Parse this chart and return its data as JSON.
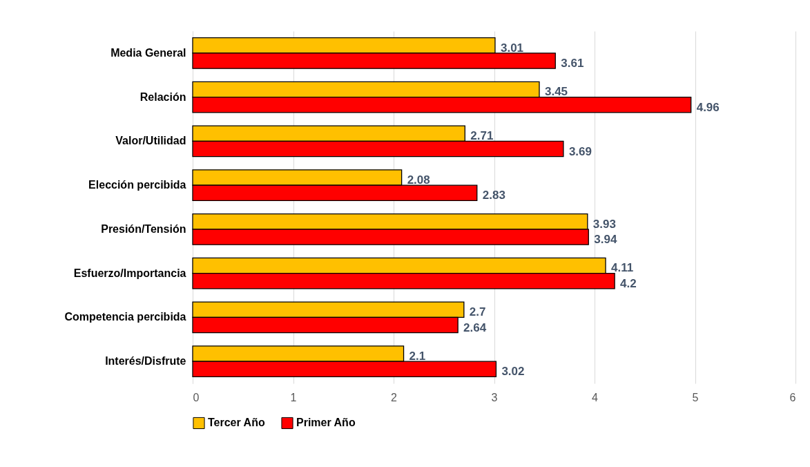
{
  "chart_data": {
    "type": "bar",
    "orientation": "horizontal",
    "categories": [
      "Media General",
      "Relación",
      "Valor/Utilidad",
      "Elección percibida",
      "Presión/Tensión",
      "Esfuerzo/Importancia",
      "Competencia percibida",
      "Interés/Disfrute"
    ],
    "series": [
      {
        "name": "Tercer Año",
        "color": "#ffc000",
        "values": [
          3.01,
          3.45,
          2.71,
          2.08,
          3.93,
          4.11,
          2.7,
          2.1
        ]
      },
      {
        "name": "Primer Año",
        "color": "#ff0000",
        "values": [
          3.61,
          4.96,
          3.69,
          2.83,
          3.94,
          4.2,
          2.64,
          3.02
        ]
      }
    ],
    "xlim": [
      0,
      6
    ],
    "xticks": [
      0,
      1,
      2,
      3,
      4,
      5,
      6
    ],
    "grid": "x",
    "legend": "bottom",
    "data_labels": true
  }
}
